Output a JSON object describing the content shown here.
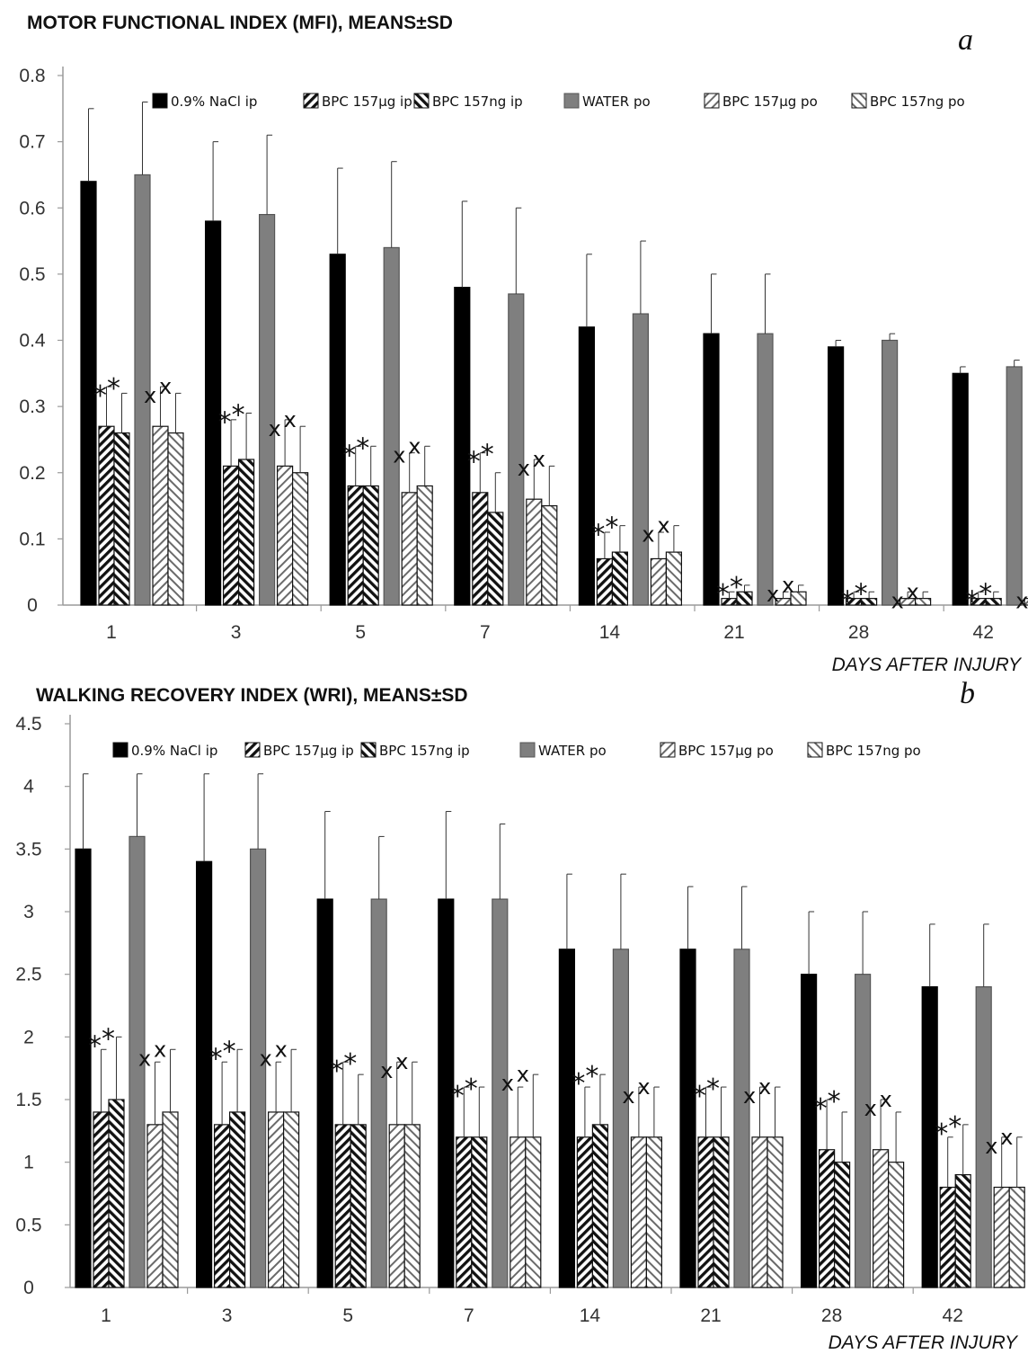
{
  "chart_data": [
    {
      "type": "bar",
      "title": "MOTOR FUNCTIONAL INDEX (MFI), MEANS±SD",
      "panel_label": "a",
      "xlabel": "DAYS AFTER INJURY",
      "ylabel": "",
      "ylim": [
        0,
        0.8
      ],
      "yticks": [
        "0",
        "0.1",
        "0.2",
        "0.3",
        "0.4",
        "0.5",
        "0.6",
        "0.7",
        "0.8"
      ],
      "grid": false,
      "legend_position": "top",
      "categories": [
        "1",
        "3",
        "5",
        "7",
        "14",
        "21",
        "28",
        "42"
      ],
      "series": [
        {
          "name": "0.9% NaCl ip",
          "fill": "black",
          "values": [
            0.64,
            0.58,
            0.53,
            0.48,
            0.42,
            0.41,
            0.39,
            0.35
          ],
          "sd": [
            0.11,
            0.12,
            0.13,
            0.13,
            0.11,
            0.09,
            0.01,
            0.01
          ]
        },
        {
          "name": "BPC 157µg ip",
          "fill": "hatch-dense",
          "values": [
            0.27,
            0.21,
            0.18,
            0.17,
            0.07,
            0.01,
            0.01,
            0.01
          ],
          "sd": [
            0.06,
            0.07,
            0.06,
            0.06,
            0.04,
            0.01,
            0.01,
            0.01
          ]
        },
        {
          "name": "BPC 157ng ip",
          "fill": "hatch-back",
          "values": [
            0.26,
            0.22,
            0.18,
            0.14,
            0.08,
            0.02,
            0.01,
            0.01
          ],
          "sd": [
            0.06,
            0.07,
            0.06,
            0.06,
            0.04,
            0.01,
            0.01,
            0.01
          ]
        },
        {
          "name": "WATER po",
          "fill": "gray",
          "values": [
            0.65,
            0.59,
            0.54,
            0.47,
            0.44,
            0.41,
            0.4,
            0.36
          ],
          "sd": [
            0.11,
            0.12,
            0.13,
            0.13,
            0.11,
            0.09,
            0.01,
            0.01
          ]
        },
        {
          "name": "BPC 157µg po",
          "fill": "hatch-light",
          "values": [
            0.27,
            0.21,
            0.17,
            0.16,
            0.07,
            0.01,
            0.01,
            0.01
          ],
          "sd": [
            0.06,
            0.07,
            0.06,
            0.06,
            0.04,
            0.01,
            0.01,
            0.01
          ]
        },
        {
          "name": "BPC 157ng po",
          "fill": "hatch-light-back",
          "values": [
            0.26,
            0.2,
            0.18,
            0.15,
            0.08,
            0.02,
            0.01,
            0.01
          ],
          "sd": [
            0.06,
            0.07,
            0.06,
            0.06,
            0.04,
            0.01,
            0.01,
            0.01
          ]
        }
      ],
      "annotations": {
        "ip_mark": "*",
        "po_mark": "x"
      }
    },
    {
      "type": "bar",
      "title": "WALKING RECOVERY  INDEX (WRI), MEANS±SD",
      "panel_label": "b",
      "xlabel": "DAYS AFTER INJURY",
      "ylabel": "",
      "ylim": [
        0,
        4.5
      ],
      "yticks": [
        "0",
        "0.5",
        "1",
        "1.5",
        "2",
        "2.5",
        "3",
        "3.5",
        "4",
        "4.5"
      ],
      "grid": false,
      "legend_position": "top",
      "categories": [
        "1",
        "3",
        "5",
        "7",
        "14",
        "21",
        "28",
        "42"
      ],
      "series": [
        {
          "name": "0.9% NaCl ip",
          "fill": "black",
          "values": [
            3.5,
            3.4,
            3.1,
            3.1,
            2.7,
            2.7,
            2.5,
            2.4
          ],
          "sd": [
            0.6,
            0.7,
            0.7,
            0.7,
            0.6,
            0.5,
            0.5,
            0.5
          ]
        },
        {
          "name": "BPC 157µg ip",
          "fill": "hatch-dense",
          "values": [
            1.4,
            1.3,
            1.3,
            1.2,
            1.2,
            1.2,
            1.1,
            0.8
          ],
          "sd": [
            0.5,
            0.5,
            0.5,
            0.4,
            0.4,
            0.4,
            0.4,
            0.4
          ]
        },
        {
          "name": "BPC 157ng ip",
          "fill": "hatch-back",
          "values": [
            1.5,
            1.4,
            1.3,
            1.2,
            1.3,
            1.2,
            1.0,
            0.9
          ],
          "sd": [
            0.5,
            0.5,
            0.4,
            0.4,
            0.4,
            0.4,
            0.4,
            0.4
          ]
        },
        {
          "name": "WATER po",
          "fill": "gray",
          "values": [
            3.6,
            3.5,
            3.1,
            3.1,
            2.7,
            2.7,
            2.5,
            2.4
          ],
          "sd": [
            0.5,
            0.6,
            0.5,
            0.6,
            0.6,
            0.5,
            0.5,
            0.5
          ]
        },
        {
          "name": "BPC 157µg po",
          "fill": "hatch-light",
          "values": [
            1.3,
            1.4,
            1.3,
            1.2,
            1.2,
            1.2,
            1.1,
            0.8
          ],
          "sd": [
            0.5,
            0.4,
            0.5,
            0.4,
            0.4,
            0.4,
            0.4,
            0.4
          ]
        },
        {
          "name": "BPC 157ng po",
          "fill": "hatch-light-back",
          "values": [
            1.4,
            1.4,
            1.3,
            1.2,
            1.2,
            1.2,
            1.0,
            0.8
          ],
          "sd": [
            0.5,
            0.5,
            0.5,
            0.5,
            0.4,
            0.4,
            0.4,
            0.4
          ]
        }
      ],
      "annotations": {
        "ip_mark": "*",
        "po_mark": "x"
      }
    }
  ]
}
